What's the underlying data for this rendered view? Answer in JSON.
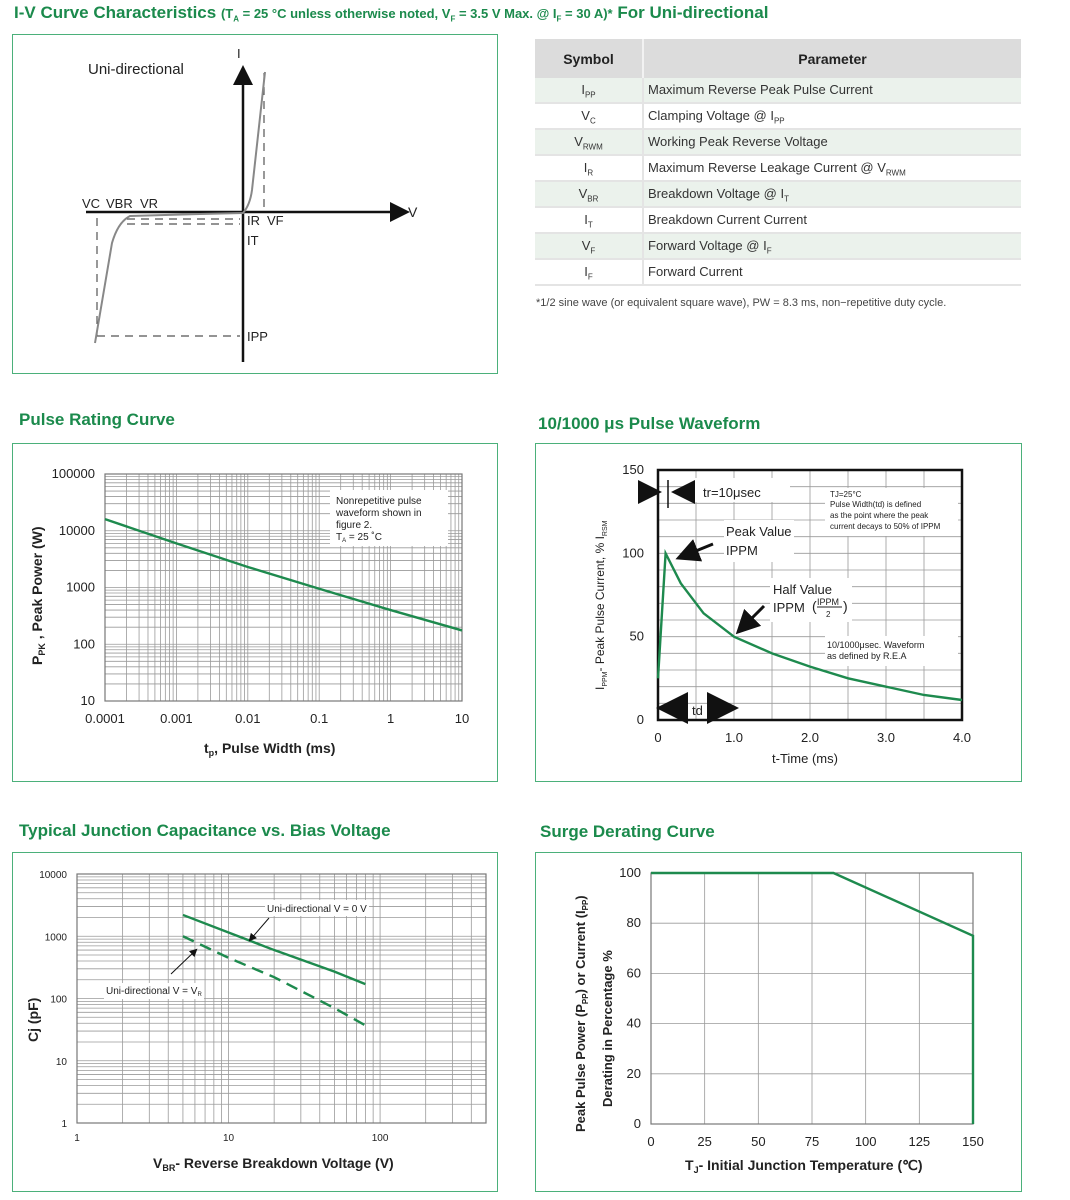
{
  "colors": {
    "accent": "#1b8a4c",
    "border": "#4bb07a",
    "curve": "#1e8a4e",
    "grid": "#9a9a9a"
  },
  "header": {
    "title": "I-V Curve Characteristics",
    "cond_open": "(T",
    "cond_ta_sub": "A",
    "cond_mid": " = 25 °C unless otherwise noted, V",
    "cond_vf_sub": "F",
    "cond_mid2": " = 3.5 V Max. @ I",
    "cond_if_sub": "F",
    "cond_end": " = 30 A)*",
    "suffix": " For Uni-directional"
  },
  "iv_diagram": {
    "label": "Uni-directional",
    "i_axis": "I",
    "v_axis": "V",
    "vc": "VC",
    "vbr": "VBR",
    "vr": "VR",
    "ir": "IR",
    "vf": "VF",
    "it": "IT",
    "ipp": "IPP"
  },
  "symbol_table": {
    "headers": [
      "Symbol",
      "Parameter"
    ],
    "rows": [
      {
        "sym": "I",
        "sub": "PP",
        "param": "Maximum Reverse Peak Pulse Current",
        "psub": ""
      },
      {
        "sym": "V",
        "sub": "C",
        "param": "Clamping Voltage @ I",
        "psub": "PP"
      },
      {
        "sym": "V",
        "sub": "RWM",
        "param": "Working Peak Reverse Voltage",
        "psub": ""
      },
      {
        "sym": "I",
        "sub": "R",
        "param": "Maximum Reverse Leakage Current @ V",
        "psub": "RWM"
      },
      {
        "sym": "V",
        "sub": "BR",
        "param": "Breakdown Voltage @ I",
        "psub": "T"
      },
      {
        "sym": "I",
        "sub": "T",
        "param": "Breakdown Current Current",
        "psub": ""
      },
      {
        "sym": "V",
        "sub": "F",
        "param": "Forward Voltage @ I",
        "psub": "F"
      },
      {
        "sym": "I",
        "sub": "F",
        "param": "Forward Current",
        "psub": ""
      }
    ],
    "footnote": "*1/2 sine wave (or equivalent square wave), PW = 8.3 ms, non−repetitive duty cycle."
  },
  "chart_data": [
    {
      "id": "pulse",
      "type": "line",
      "title": "Pulse Rating Curve",
      "xlabel": {
        "pre": "t",
        "sub": "p",
        "text": ", Pulse Width (ms)"
      },
      "ylabel": {
        "pre": "P",
        "sub": "PK",
        "text": " , Peak Power (W)"
      },
      "xscale": "log",
      "yscale": "log",
      "xlim": [
        0.0001,
        10
      ],
      "ylim": [
        10,
        100000
      ],
      "grid": true,
      "xticks": [
        "0.0001",
        "0.001",
        "0.01",
        "0.1",
        "1",
        "10"
      ],
      "yticks": [
        "10",
        "100",
        "1000",
        "10000",
        "100000"
      ],
      "series": [
        {
          "x": [
            0.0001,
            0.001,
            0.01,
            0.1,
            1,
            10
          ],
          "y": [
            16000,
            6000,
            2300,
            950,
            400,
            175
          ],
          "style": "solid"
        }
      ],
      "note": [
        "Nonrepetitive pulse",
        "waveform shown in",
        "figure 2.",
        "T",
        "A",
        "= 25 ˚C"
      ]
    },
    {
      "id": "wave",
      "type": "line",
      "title": "10/1000 μs Pulse Waveform",
      "xlabel": "t-Time (ms)",
      "ylabel": {
        "pre": "I",
        "sub": "PPM",
        "text": "- Peak Pulse Current, % I",
        "sub2": "RSM"
      },
      "xscale": "linear",
      "yscale": "linear",
      "xlim": [
        0,
        4
      ],
      "ylim": [
        0,
        150
      ],
      "grid": true,
      "xticks": [
        "0",
        "1.0",
        "2.0",
        "3.0",
        "4.0"
      ],
      "xtickvals": [
        0,
        1,
        2,
        3,
        4
      ],
      "yticks": [
        "0",
        "50",
        "100",
        "150"
      ],
      "ytickvals": [
        0,
        50,
        100,
        150
      ],
      "series": [
        {
          "x": [
            0,
            0.1,
            0.3,
            0.6,
            1.0,
            1.5,
            2.0,
            2.5,
            3.0,
            3.5,
            4.0
          ],
          "y": [
            25,
            100,
            82,
            64,
            50,
            40,
            32,
            25,
            20,
            15,
            12
          ],
          "style": "solid"
        }
      ],
      "annotations": {
        "tr": "tr=10μsec",
        "peak": "Peak Value",
        "peak_sym": "IPPM",
        "half": "Half Value",
        "half_sym": "IPPM",
        "half_frac_num": "IPPM",
        "half_frac_den": "2",
        "td": "td",
        "def": [
          "TJ=25°C",
          "Pulse Width(td) is defined",
          "as the point where the peak",
          "current decays to 50% of IPPM"
        ],
        "rea": [
          "10/1000μsec. Waveform",
          "as defined by R.E.A"
        ]
      }
    },
    {
      "id": "cap",
      "type": "line",
      "title": "Typical Junction Capacitance vs. Bias Voltage",
      "xlabel": {
        "pre": "V",
        "sub": "BR",
        "text": "- Reverse Breakdown Voltage (V)"
      },
      "ylabel": "Cj (pF)",
      "xscale": "log",
      "yscale": "log",
      "xlim": [
        1,
        500
      ],
      "ylim": [
        1,
        10000
      ],
      "grid": true,
      "xticks": [
        "1",
        "10",
        "100"
      ],
      "xtickvals": [
        1,
        10,
        100
      ],
      "yticks": [
        "1",
        "10",
        "100",
        "1000",
        "10000"
      ],
      "series": [
        {
          "name": "Uni-directional V = 0 V",
          "x": [
            5,
            10,
            20,
            50,
            80
          ],
          "y": [
            2200,
            1150,
            600,
            270,
            170
          ],
          "style": "solid"
        },
        {
          "name": "Uni-directional V = VR",
          "x": [
            5,
            10,
            20,
            50,
            80
          ],
          "y": [
            1000,
            450,
            220,
            70,
            37
          ],
          "style": "dashed"
        }
      ],
      "labels": {
        "s1": "Uni-directional V = 0 V",
        "s2": "Uni-directional V = V",
        "s2sub": "R"
      }
    },
    {
      "id": "surge",
      "type": "line",
      "title": "Surge Derating Curve",
      "xlabel": {
        "pre": "T",
        "sub": "J",
        "text": "- Initial Junction Temperature (℃)"
      },
      "ylabel": {
        "line1": "Peak Pulse Power (P",
        "sub1": "PP",
        "mid": ") or Current (I",
        "sub2": "PP",
        "end": ")",
        "line2": "Derating in Percentage %"
      },
      "xscale": "linear",
      "yscale": "linear",
      "xlim": [
        0,
        150
      ],
      "ylim": [
        0,
        100
      ],
      "grid": true,
      "xticks": [
        "0",
        "25",
        "50",
        "75",
        "100",
        "125",
        "150"
      ],
      "xtickvals": [
        0,
        25,
        50,
        75,
        100,
        125,
        150
      ],
      "yticks": [
        "0",
        "20",
        "40",
        "60",
        "80",
        "100"
      ],
      "ytickvals": [
        0,
        20,
        40,
        60,
        80,
        100
      ],
      "series": [
        {
          "x": [
            0,
            85,
            150,
            150
          ],
          "y": [
            100,
            100,
            75,
            0
          ],
          "style": "solid"
        }
      ]
    }
  ]
}
